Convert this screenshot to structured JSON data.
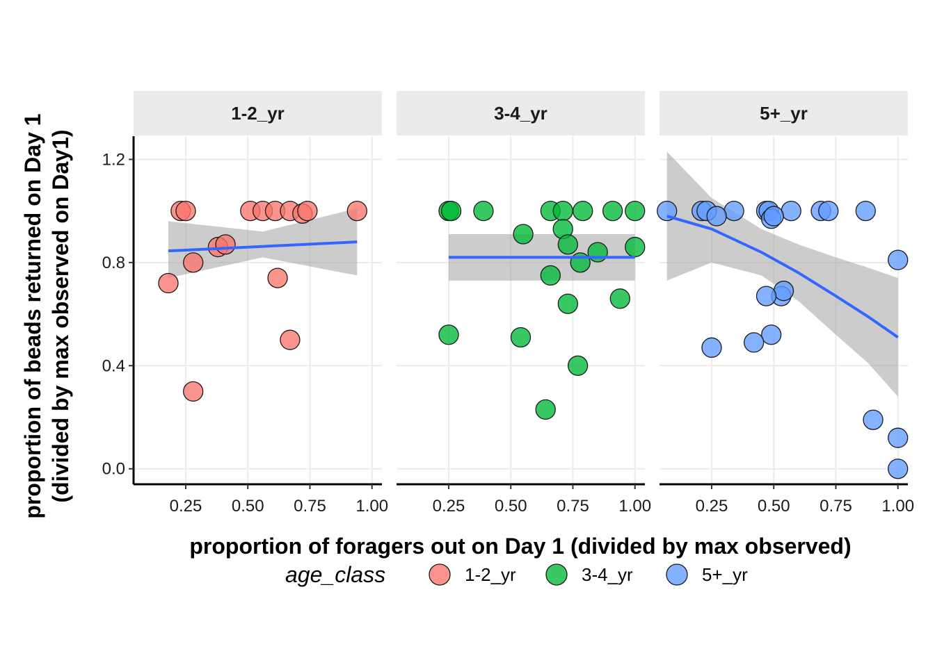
{
  "chart_data": {
    "type": "scatter",
    "xlabel": "proportion of foragers out on Day 1 (divided by max observed)",
    "ylabel_line1": "proportion of beads returned on Day 1",
    "ylabel_line2": "(divided by max observed on Day1)",
    "xlim": [
      0.04,
      1.04
    ],
    "ylim": [
      -0.06,
      1.29
    ],
    "x_ticks": [
      0.25,
      0.5,
      0.75,
      1.0
    ],
    "x_tick_labels": [
      "0.25",
      "0.50",
      "0.75",
      "1.00"
    ],
    "y_ticks": [
      0.0,
      0.4,
      0.8,
      1.2
    ],
    "y_tick_labels": [
      "0.0",
      "0.4",
      "0.8",
      "1.2"
    ],
    "grid": true,
    "legend": {
      "title": "age_class",
      "placement": "bottom",
      "entries": [
        "1-2_yr",
        "3-4_yr",
        "5+_yr"
      ]
    },
    "colors": {
      "1-2_yr": "#F8766D",
      "3-4_yr": "#00BA38",
      "5+_yr": "#619CFF",
      "fit_line": "#3366FF",
      "ribbon": "#999999"
    },
    "panels": [
      {
        "label": "1-2_yr",
        "points": [
          [
            0.23,
            1.0
          ],
          [
            0.25,
            1.0
          ],
          [
            0.51,
            1.0
          ],
          [
            0.56,
            1.0
          ],
          [
            0.61,
            1.0
          ],
          [
            0.67,
            1.0
          ],
          [
            0.72,
            0.99
          ],
          [
            0.74,
            1.0
          ],
          [
            0.94,
            1.0
          ],
          [
            0.38,
            0.86
          ],
          [
            0.41,
            0.87
          ],
          [
            0.28,
            0.8
          ],
          [
            0.18,
            0.72
          ],
          [
            0.62,
            0.74
          ],
          [
            0.67,
            0.5
          ],
          [
            0.28,
            0.3
          ]
        ],
        "fit": [
          [
            0.18,
            0.845
          ],
          [
            0.94,
            0.88
          ]
        ],
        "ribbon_upper": [
          [
            0.18,
            0.96
          ],
          [
            0.56,
            0.92
          ],
          [
            0.94,
            1.01
          ]
        ],
        "ribbon_lower": [
          [
            0.18,
            0.74
          ],
          [
            0.56,
            0.82
          ],
          [
            0.94,
            0.75
          ]
        ]
      },
      {
        "label": "3-4_yr",
        "points": [
          [
            0.25,
            1.0
          ],
          [
            0.26,
            1.0
          ],
          [
            0.39,
            1.0
          ],
          [
            0.66,
            1.0
          ],
          [
            0.71,
            1.0
          ],
          [
            0.79,
            1.0
          ],
          [
            0.91,
            1.0
          ],
          [
            1.0,
            1.0
          ],
          [
            0.71,
            0.93
          ],
          [
            0.55,
            0.91
          ],
          [
            0.73,
            0.87
          ],
          [
            0.85,
            0.84
          ],
          [
            1.0,
            0.86
          ],
          [
            0.78,
            0.8
          ],
          [
            0.66,
            0.75
          ],
          [
            0.94,
            0.66
          ],
          [
            0.73,
            0.64
          ],
          [
            0.25,
            0.52
          ],
          [
            0.54,
            0.51
          ],
          [
            0.77,
            0.4
          ],
          [
            0.64,
            0.23
          ]
        ],
        "fit": [
          [
            0.25,
            0.82
          ],
          [
            1.0,
            0.82
          ]
        ],
        "ribbon_upper": [
          [
            0.25,
            0.91
          ],
          [
            1.0,
            0.91
          ]
        ],
        "ribbon_lower": [
          [
            0.25,
            0.73
          ],
          [
            1.0,
            0.73
          ]
        ]
      },
      {
        "label": "5+_yr",
        "points": [
          [
            0.07,
            1.0
          ],
          [
            0.21,
            1.0
          ],
          [
            0.23,
            1.0
          ],
          [
            0.34,
            1.0
          ],
          [
            0.47,
            1.0
          ],
          [
            0.48,
            1.0
          ],
          [
            0.57,
            1.0
          ],
          [
            0.69,
            1.0
          ],
          [
            0.72,
            1.0
          ],
          [
            0.87,
            1.0
          ],
          [
            0.27,
            0.98
          ],
          [
            0.49,
            0.97
          ],
          [
            0.5,
            0.98
          ],
          [
            1.0,
            0.81
          ],
          [
            0.53,
            0.67
          ],
          [
            0.54,
            0.69
          ],
          [
            0.47,
            0.67
          ],
          [
            0.49,
            0.52
          ],
          [
            0.42,
            0.49
          ],
          [
            0.25,
            0.47
          ],
          [
            0.9,
            0.19
          ],
          [
            1.0,
            0.12
          ],
          [
            1.0,
            0.0
          ]
        ],
        "fit": [
          [
            0.07,
            0.98
          ],
          [
            0.25,
            0.93
          ],
          [
            0.45,
            0.84
          ],
          [
            0.6,
            0.76
          ],
          [
            0.75,
            0.67
          ],
          [
            0.88,
            0.59
          ],
          [
            1.0,
            0.51
          ]
        ],
        "ribbon_upper": [
          [
            0.07,
            1.23
          ],
          [
            0.25,
            1.05
          ],
          [
            0.45,
            0.93
          ],
          [
            0.6,
            0.87
          ],
          [
            0.75,
            0.82
          ],
          [
            0.88,
            0.78
          ],
          [
            1.0,
            0.74
          ]
        ],
        "ribbon_lower": [
          [
            0.07,
            0.73
          ],
          [
            0.25,
            0.8
          ],
          [
            0.45,
            0.75
          ],
          [
            0.6,
            0.65
          ],
          [
            0.75,
            0.52
          ],
          [
            0.88,
            0.41
          ],
          [
            1.0,
            0.28
          ]
        ]
      }
    ]
  }
}
